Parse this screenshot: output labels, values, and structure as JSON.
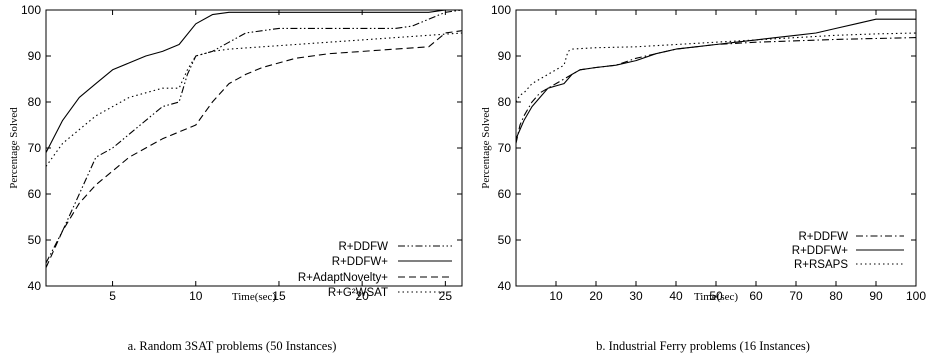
{
  "chart_data": [
    {
      "type": "line",
      "caption": "a. Random 3SAT problems (50 Instances)",
      "xlabel": "Time(sec)",
      "ylabel": "Percentage Solved",
      "xlim": [
        1,
        26
      ],
      "ylim": [
        40,
        100
      ],
      "xticks": [
        5,
        10,
        15,
        20,
        25
      ],
      "yticks": [
        40,
        50,
        60,
        70,
        80,
        90,
        100
      ],
      "grid": false,
      "legend_position": "bottom-right",
      "series": [
        {
          "name": "R+DDFW",
          "dash": "dash-dot-dot",
          "x": [
            1,
            2,
            3,
            4,
            5,
            6,
            7,
            8,
            9,
            9.5,
            10,
            11,
            12,
            13,
            14,
            15,
            18,
            20,
            22,
            23,
            24,
            25,
            26
          ],
          "y": [
            45,
            52,
            60,
            68,
            70,
            73,
            76,
            79,
            80,
            86,
            90,
            91,
            93,
            95,
            95.5,
            96,
            96,
            96,
            96,
            96.5,
            98,
            99.5,
            100
          ]
        },
        {
          "name": "R+DDFW+",
          "dash": "solid",
          "x": [
            1,
            2,
            3,
            4,
            5,
            6,
            7,
            8,
            9,
            10,
            11,
            12,
            14,
            16,
            18,
            20,
            22,
            24,
            25,
            26
          ],
          "y": [
            69,
            76,
            81,
            84,
            87,
            88.5,
            90,
            91,
            92.5,
            97,
            99,
            99.5,
            99.5,
            99.5,
            99.5,
            99.5,
            99.5,
            99.5,
            100,
            100
          ]
        },
        {
          "name": "R+AdaptNovelty+",
          "dash": "dashed",
          "x": [
            1,
            2,
            3,
            4,
            5,
            6,
            7,
            8,
            9,
            10,
            11,
            12,
            13,
            14,
            15,
            16,
            18,
            20,
            22,
            24,
            25,
            26
          ],
          "y": [
            44,
            52,
            58,
            62,
            65,
            68,
            70,
            72,
            73.5,
            75,
            80,
            84,
            86,
            87.5,
            88.5,
            89.5,
            90.5,
            91,
            91.5,
            92,
            95,
            95.5
          ]
        },
        {
          "name": "R+G²WSAT",
          "dash": "dotted",
          "x": [
            1,
            2,
            3,
            4,
            5,
            6,
            7,
            8,
            9,
            9.5,
            10,
            11,
            12,
            14,
            16,
            18,
            20,
            22,
            24,
            26
          ],
          "y": [
            66,
            71,
            74,
            77,
            79,
            81,
            82,
            83,
            83,
            87,
            90,
            91,
            91.5,
            92,
            92.5,
            93,
            93.5,
            94,
            94.5,
            95
          ]
        }
      ]
    },
    {
      "type": "line",
      "caption": "b. Industrial Ferry problems (16 Instances)",
      "xlabel": "Time(sec)",
      "ylabel": "Percentage Solved",
      "xlim": [
        0,
        100
      ],
      "ylim": [
        40,
        100
      ],
      "xticks": [
        10,
        20,
        30,
        40,
        50,
        60,
        70,
        80,
        90,
        100
      ],
      "yticks": [
        40,
        50,
        60,
        70,
        80,
        90,
        100
      ],
      "grid": false,
      "legend_position": "right",
      "series": [
        {
          "name": "R+DDFW",
          "dash": "dash-dot",
          "x": [
            0,
            1,
            2,
            4,
            6,
            8,
            10,
            12,
            14,
            16,
            20,
            25,
            30,
            35,
            40,
            45,
            50,
            60,
            70,
            80,
            90,
            100
          ],
          "y": [
            71,
            75,
            77,
            80,
            82,
            83,
            84,
            85,
            86,
            87,
            87.5,
            88,
            89.5,
            90.5,
            91.5,
            92,
            92.5,
            93,
            93.3,
            93.6,
            93.8,
            94
          ]
        },
        {
          "name": "R+DDFW+",
          "dash": "solid",
          "x": [
            0,
            1,
            2,
            4,
            6,
            8,
            10,
            12,
            14,
            16,
            20,
            25,
            30,
            35,
            40,
            45,
            50,
            55,
            60,
            65,
            70,
            75,
            80,
            85,
            90,
            92,
            100
          ],
          "y": [
            72,
            74,
            76,
            79,
            81,
            83,
            83.5,
            84,
            86,
            87,
            87.5,
            88,
            89,
            90.5,
            91.5,
            92,
            92.5,
            93,
            93.5,
            94,
            94.5,
            95,
            96,
            97,
            98,
            98,
            98
          ]
        },
        {
          "name": "R+RSAPS",
          "dash": "dotted",
          "x": [
            0,
            1,
            2,
            4,
            6,
            8,
            10,
            12,
            13,
            14,
            20,
            30,
            40,
            50,
            60,
            70,
            80,
            90,
            100
          ],
          "y": [
            80,
            81.5,
            82,
            84,
            85,
            86,
            87,
            88,
            91,
            91.5,
            91.8,
            92,
            92.5,
            93,
            93.5,
            94,
            94.5,
            94.8,
            95
          ]
        }
      ]
    }
  ]
}
